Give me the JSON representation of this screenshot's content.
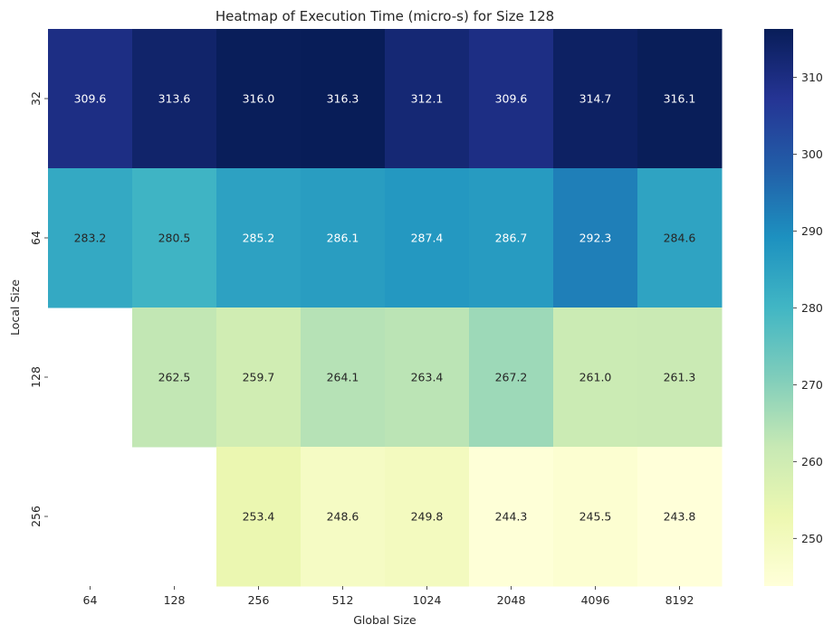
{
  "chart_data": {
    "type": "heatmap",
    "title": "Heatmap of Execution Time (micro-s) for Size 128",
    "xlabel": "Global Size",
    "ylabel": "Local Size",
    "x_categories": [
      "64",
      "128",
      "256",
      "512",
      "1024",
      "2048",
      "4096",
      "8192"
    ],
    "y_categories": [
      "32",
      "64",
      "128",
      "256"
    ],
    "values": [
      [
        309.6,
        313.6,
        316.0,
        316.3,
        312.1,
        309.6,
        314.7,
        316.1
      ],
      [
        283.2,
        280.5,
        285.2,
        286.1,
        287.4,
        286.7,
        292.3,
        284.6
      ],
      [
        null,
        262.5,
        259.7,
        264.1,
        263.4,
        267.2,
        261.0,
        261.3
      ],
      [
        null,
        null,
        253.4,
        248.6,
        249.8,
        244.3,
        245.5,
        243.8
      ]
    ],
    "value_labels": [
      [
        "309.6",
        "313.6",
        "316.0",
        "316.3",
        "312.1",
        "309.6",
        "314.7",
        "316.1"
      ],
      [
        "283.2",
        "280.5",
        "285.2",
        "286.1",
        "287.4",
        "286.7",
        "292.3",
        "284.6"
      ],
      [
        "",
        "262.5",
        "259.7",
        "264.1",
        "263.4",
        "267.2",
        "261.0",
        "261.3"
      ],
      [
        "",
        "",
        "253.4",
        "248.6",
        "249.8",
        "244.3",
        "245.5",
        "243.8"
      ]
    ],
    "colormap": "YlGnBu",
    "vmin": 243.8,
    "vmax": 316.3,
    "colorbar_ticks": [
      "250",
      "260",
      "270",
      "280",
      "290",
      "300",
      "310"
    ],
    "colorbar_tick_values": [
      250,
      260,
      270,
      280,
      290,
      300,
      310
    ],
    "colormap_stops": [
      "#ffffd9",
      "#edf8b1",
      "#c7e9b4",
      "#7fcdbb",
      "#41b6c4",
      "#1d91c0",
      "#225ea8",
      "#253494",
      "#081d58"
    ],
    "legend_position": "right",
    "grid": false
  }
}
